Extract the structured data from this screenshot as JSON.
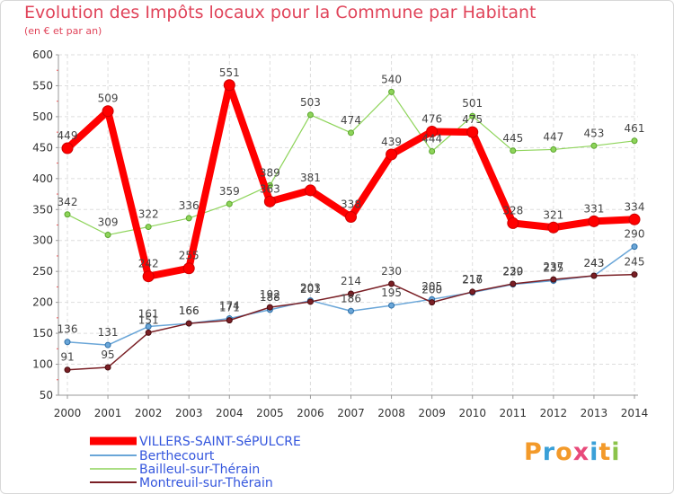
{
  "header": {
    "title": "Evolution des Impôts locaux pour la Commune par Habitant",
    "subtitle": "(en € et par an)"
  },
  "logo": {
    "text": "Proxiti"
  },
  "chart_data": {
    "type": "line",
    "x": [
      "2000",
      "2001",
      "2002",
      "2003",
      "2004",
      "2005",
      "2006",
      "2007",
      "2008",
      "2009",
      "2010",
      "2011",
      "2012",
      "2013",
      "2014"
    ],
    "ylim": [
      50,
      600
    ],
    "yticks": [
      50,
      100,
      150,
      200,
      250,
      300,
      350,
      400,
      450,
      500,
      550,
      600
    ],
    "grid": true,
    "legend_position": "bottom-left",
    "series": [
      {
        "name": "VILLERS-SAINT-SéPULCRE",
        "color": "#ff0000",
        "values": [
          449,
          509,
          242,
          255,
          551,
          363,
          381,
          338,
          439,
          476,
          475,
          328,
          321,
          331,
          334
        ]
      },
      {
        "name": "Berthecourt",
        "color": "#6aa6d8",
        "values": [
          136,
          131,
          161,
          166,
          174,
          188,
          203,
          186,
          195,
          205,
          216,
          229,
          235,
          243,
          290
        ]
      },
      {
        "name": "Bailleul-sur-Thérain",
        "color": "#8ed45a",
        "values": [
          342,
          309,
          322,
          336,
          359,
          389,
          503,
          474,
          540,
          444,
          501,
          445,
          447,
          453,
          461
        ]
      },
      {
        "name": "Montreuil-sur-Thérain",
        "color": "#7a1f25",
        "values": [
          91,
          95,
          151,
          166,
          171,
          192,
          201,
          214,
          230,
          200,
          217,
          230,
          237,
          243,
          245
        ]
      }
    ]
  }
}
